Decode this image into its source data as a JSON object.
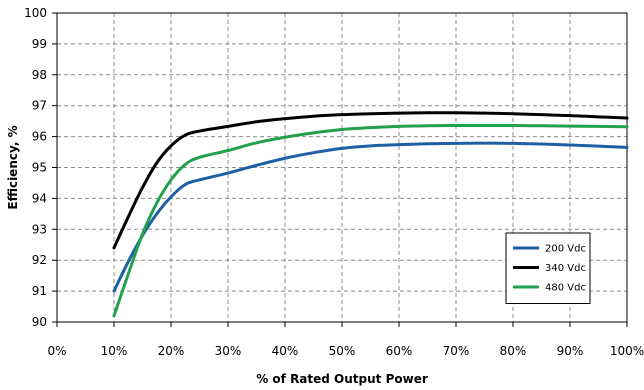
{
  "chart_data": {
    "type": "line",
    "title": "",
    "xlabel": "% of Rated Output Power",
    "ylabel": "Efficiency, %",
    "xlim": [
      0,
      100
    ],
    "ylim": [
      90,
      100
    ],
    "xticks": [
      0,
      10,
      20,
      30,
      40,
      50,
      60,
      70,
      80,
      90,
      100
    ],
    "xtick_labels": [
      "0%",
      "10%",
      "20%",
      "30%",
      "40%",
      "50%",
      "60%",
      "70%",
      "80%",
      "90%",
      "100%"
    ],
    "yticks": [
      90,
      91,
      92,
      93,
      94,
      95,
      96,
      97,
      98,
      99,
      100
    ],
    "ytick_labels": [
      "90",
      "91",
      "92",
      "93",
      "94",
      "95",
      "96",
      "97",
      "98",
      "99",
      "100"
    ],
    "grid": true,
    "legend_position": "bottom-right",
    "series": [
      {
        "name": "200 Vdc",
        "color": "#1f5fa5",
        "x": [
          10,
          12.5,
          15,
          17.5,
          20,
          22.5,
          25,
          30,
          35,
          40,
          45,
          50,
          55,
          60,
          65,
          70,
          75,
          80,
          85,
          90,
          95,
          100
        ],
        "y": [
          91.0,
          91.95,
          92.8,
          93.5,
          94.05,
          94.45,
          94.6,
          94.82,
          95.07,
          95.3,
          95.48,
          95.62,
          95.7,
          95.74,
          95.77,
          95.78,
          95.79,
          95.78,
          95.76,
          95.73,
          95.69,
          95.65
        ]
      },
      {
        "name": "340 Vdc",
        "color": "#000000",
        "x": [
          10,
          12.5,
          15,
          17.5,
          20,
          22.5,
          25,
          30,
          35,
          40,
          45,
          50,
          55,
          60,
          65,
          70,
          75,
          80,
          85,
          90,
          95,
          100
        ],
        "y": [
          92.4,
          93.4,
          94.35,
          95.15,
          95.7,
          96.05,
          96.18,
          96.33,
          96.48,
          96.58,
          96.66,
          96.71,
          96.74,
          96.76,
          96.77,
          96.77,
          96.76,
          96.74,
          96.71,
          96.68,
          96.64,
          96.6
        ]
      },
      {
        "name": "480 Vdc",
        "color": "#22a04b",
        "x": [
          10,
          12.5,
          15,
          17.5,
          20,
          22.5,
          25,
          30,
          35,
          40,
          45,
          50,
          55,
          60,
          65,
          70,
          75,
          80,
          85,
          90,
          95,
          100
        ],
        "y": [
          90.2,
          91.55,
          92.85,
          93.85,
          94.6,
          95.1,
          95.33,
          95.55,
          95.8,
          95.98,
          96.12,
          96.23,
          96.29,
          96.33,
          96.35,
          96.36,
          96.36,
          96.36,
          96.35,
          96.34,
          96.33,
          96.32
        ]
      }
    ]
  }
}
